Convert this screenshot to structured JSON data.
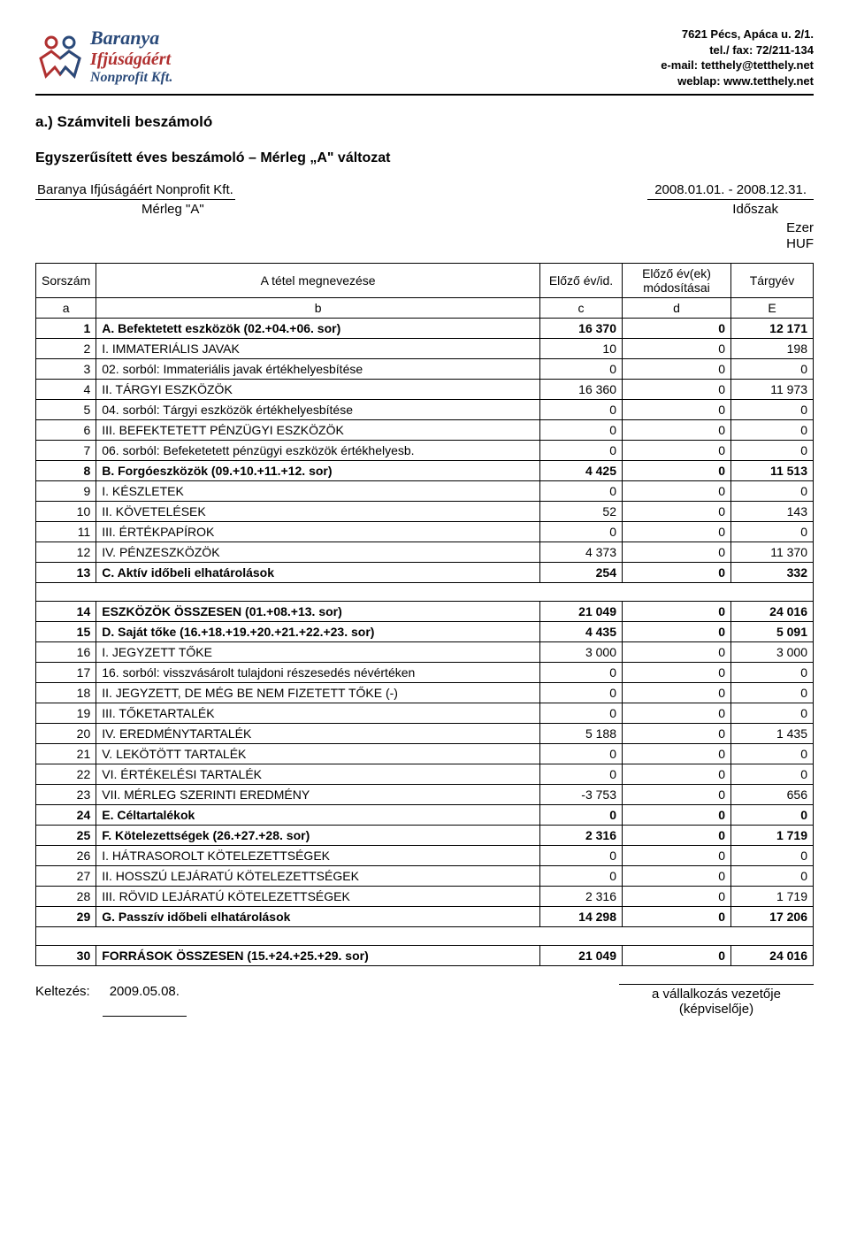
{
  "header": {
    "logo_line1": "Baranya",
    "logo_line2": "Ifjúságáért",
    "logo_line3": "Nonprofit Kft.",
    "contact_line1": "7621 Pécs, Apáca u. 2/1.",
    "contact_line2": "tel./ fax: 72/211-134",
    "contact_line3": "e-mail: tetthely@tetthely.net",
    "contact_line4": "weblap: www.tetthely.net"
  },
  "titles": {
    "section": "a.)   Számviteli beszámoló",
    "subtitle": "Egyszerűsített éves beszámoló – Mérleg „A\" változat",
    "company": "Baranya Ifjúságáért Nonprofit Kft.",
    "period": "2008.01.01. - 2008.12.31.",
    "merleg": "Mérleg \"A\"",
    "idoszak": "Időszak",
    "unit1": "Ezer",
    "unit2": "HUF"
  },
  "columns": {
    "sorszam": "Sorszám",
    "megnevezes": "A tétel megnevezése",
    "elozo": "Előző év/id.",
    "modositas": "Előző év(ek) módosításai",
    "targyev": "Tárgyév",
    "a": "a",
    "b": "b",
    "c": "c",
    "d": "d",
    "e": "E"
  },
  "rows1": [
    {
      "n": "1",
      "d": "A. Befektetett eszközök (02.+04.+06. sor)",
      "c": "16 370",
      "m": "0",
      "e": "12 171",
      "bold": true
    },
    {
      "n": "2",
      "d": "I. IMMATERIÁLIS JAVAK",
      "c": "10",
      "m": "0",
      "e": "198"
    },
    {
      "n": "3",
      "d": "  02. sorból: Immateriális javak értékhelyesbítése",
      "c": "0",
      "m": "0",
      "e": "0"
    },
    {
      "n": "4",
      "d": "II. TÁRGYI ESZKÖZÖK",
      "c": "16 360",
      "m": "0",
      "e": "11 973"
    },
    {
      "n": "5",
      "d": "  04. sorból: Tárgyi eszközök értékhelyesbítése",
      "c": "0",
      "m": "0",
      "e": "0"
    },
    {
      "n": "6",
      "d": "III. BEFEKTETETT PÉNZÜGYI ESZKÖZÖK",
      "c": "0",
      "m": "0",
      "e": "0"
    },
    {
      "n": "7",
      "d": "  06. sorból: Befeketetett pénzügyi eszközök értékhelyesb.",
      "c": "0",
      "m": "0",
      "e": "0"
    },
    {
      "n": "8",
      "d": "B. Forgóeszközök (09.+10.+11.+12. sor)",
      "c": "4 425",
      "m": "0",
      "e": "11 513",
      "bold": true
    },
    {
      "n": "9",
      "d": "I. KÉSZLETEK",
      "c": "0",
      "m": "0",
      "e": "0"
    },
    {
      "n": "10",
      "d": "II. KÖVETELÉSEK",
      "c": "52",
      "m": "0",
      "e": "143"
    },
    {
      "n": "11",
      "d": "III. ÉRTÉKPAPÍROK",
      "c": "0",
      "m": "0",
      "e": "0"
    },
    {
      "n": "12",
      "d": "IV. PÉNZESZKÖZÖK",
      "c": "4 373",
      "m": "0",
      "e": "11 370"
    },
    {
      "n": "13",
      "d": "C. Aktív időbeli elhatárolások",
      "c": "254",
      "m": "0",
      "e": "332",
      "bold": true
    }
  ],
  "rows2": [
    {
      "n": "14",
      "d": "ESZKÖZÖK ÖSSZESEN (01.+08.+13. sor)",
      "c": "21 049",
      "m": "0",
      "e": "24 016",
      "bold": true
    },
    {
      "n": "15",
      "d": "D. Saját tőke (16.+18.+19.+20.+21.+22.+23. sor)",
      "c": "4 435",
      "m": "0",
      "e": "5 091",
      "bold": true
    },
    {
      "n": "16",
      "d": "I. JEGYZETT TŐKE",
      "c": "3 000",
      "m": "0",
      "e": "3 000"
    },
    {
      "n": "17",
      "d": "  16. sorból: visszvásárolt tulajdoni részesedés névértéken",
      "c": "0",
      "m": "0",
      "e": "0"
    },
    {
      "n": "18",
      "d": "II. JEGYZETT, DE MÉG BE NEM FIZETETT TŐKE (-)",
      "c": "0",
      "m": "0",
      "e": "0"
    },
    {
      "n": "19",
      "d": "III. TŐKETARTALÉK",
      "c": "0",
      "m": "0",
      "e": "0"
    },
    {
      "n": "20",
      "d": "IV. EREDMÉNYTARTALÉK",
      "c": "5 188",
      "m": "0",
      "e": "1 435"
    },
    {
      "n": "21",
      "d": "V. LEKÖTÖTT TARTALÉK",
      "c": "0",
      "m": "0",
      "e": "0"
    },
    {
      "n": "22",
      "d": "VI. ÉRTÉKELÉSI TARTALÉK",
      "c": "0",
      "m": "0",
      "e": "0"
    },
    {
      "n": "23",
      "d": "VII. MÉRLEG SZERINTI EREDMÉNY",
      "c": "-3 753",
      "m": "0",
      "e": "656"
    },
    {
      "n": "24",
      "d": "E. Céltartalékok",
      "c": "0",
      "m": "0",
      "e": "0",
      "bold": true
    },
    {
      "n": "25",
      "d": "F. Kötelezettségek (26.+27.+28. sor)",
      "c": "2 316",
      "m": "0",
      "e": "1 719",
      "bold": true
    },
    {
      "n": "26",
      "d": "I. HÁTRASOROLT KÖTELEZETTSÉGEK",
      "c": "0",
      "m": "0",
      "e": "0"
    },
    {
      "n": "27",
      "d": "II. HOSSZÚ LEJÁRATÚ KÖTELEZETTSÉGEK",
      "c": "0",
      "m": "0",
      "e": "0"
    },
    {
      "n": "28",
      "d": "III. RÖVID LEJÁRATÚ KÖTELEZETTSÉGEK",
      "c": "2 316",
      "m": "0",
      "e": "1 719"
    },
    {
      "n": "29",
      "d": "G. Passzív időbeli elhatárolások",
      "c": "14 298",
      "m": "0",
      "e": "17 206",
      "bold": true
    }
  ],
  "rows3": [
    {
      "n": "30",
      "d": "FORRÁSOK ÖSSZESEN (15.+24.+25.+29. sor)",
      "c": "21 049",
      "m": "0",
      "e": "24 016",
      "bold": true
    }
  ],
  "footer": {
    "kelt_label": "Keltezés:",
    "kelt_date": "2009.05.08.",
    "sign1": "a vállalkozás vezetője",
    "sign2": "(képviselője)"
  }
}
